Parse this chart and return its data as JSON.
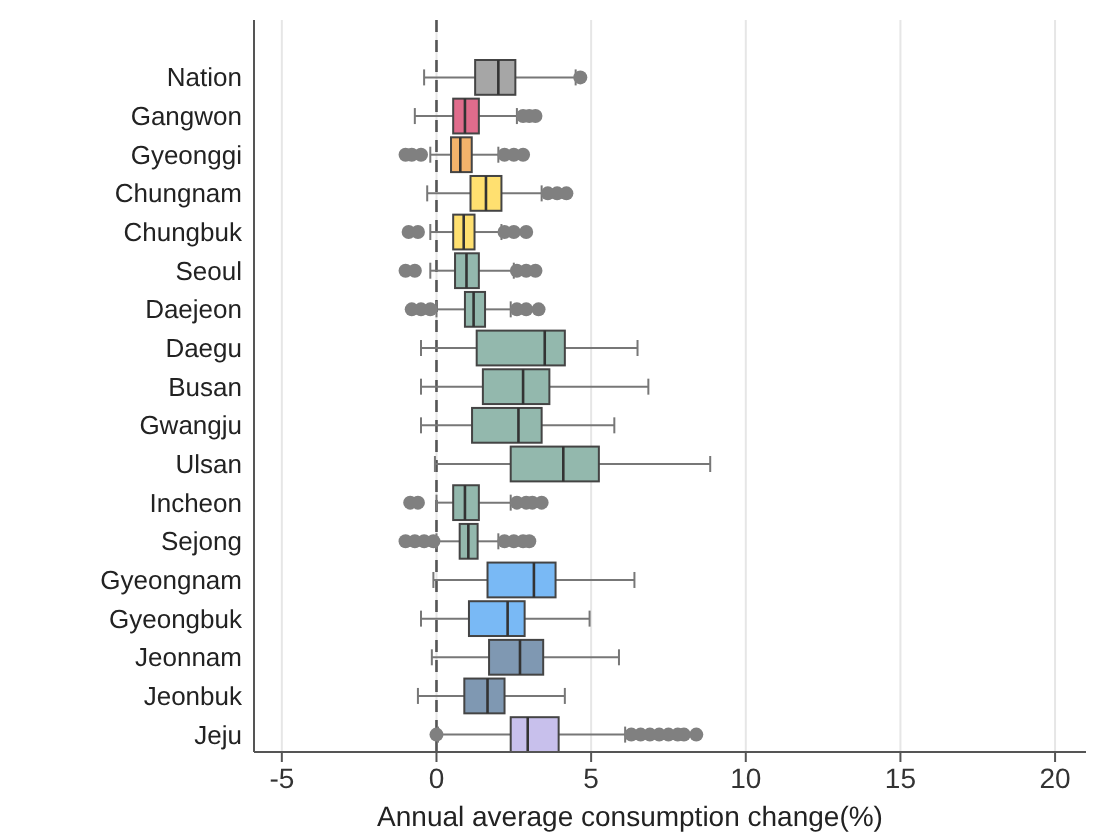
{
  "chart_data": {
    "type": "box",
    "orientation": "horizontal",
    "xlabel": "Annual average consumption change(%)",
    "xlim": [
      -5.9,
      21
    ],
    "xticks": [
      -5,
      0,
      5,
      10,
      15,
      20
    ],
    "grid": "x",
    "categories": [
      "Nation",
      "Gangwon",
      "Gyeonggi",
      "Chungnam",
      "Chungbuk",
      "Seoul",
      "Daejeon",
      "Daegu",
      "Busan",
      "Gwangju",
      "Ulsan",
      "Incheon",
      "Sejong",
      "Gyeongnam",
      "Gyeongbuk",
      "Jeonnam",
      "Jeonbuk",
      "Jeju"
    ],
    "colors": [
      "#a6a6a6",
      "#e06c8c",
      "#f4b36b",
      "#ffe070",
      "#ffe070",
      "#93b8ad",
      "#93b8ad",
      "#93b8ad",
      "#93b8ad",
      "#93b8ad",
      "#93b8ad",
      "#93b8ad",
      "#93b8ad",
      "#79b9f5",
      "#79b9f5",
      "#7f98b2",
      "#7f98b2",
      "#c8c0ec"
    ],
    "ref_lines": [
      {
        "axis": "x",
        "value": 0,
        "line_style": "dashed",
        "color": "#555555"
      }
    ],
    "boxes": [
      {
        "low": -0.4,
        "q1": 1.25,
        "median": 2.0,
        "q3": 2.55,
        "high": 4.5,
        "outliers": [
          4.65
        ]
      },
      {
        "low": -0.7,
        "q1": 0.54,
        "median": 0.92,
        "q3": 1.37,
        "high": 2.6,
        "outliers": [
          2.8,
          3.0,
          3.2
        ]
      },
      {
        "low": -0.2,
        "q1": 0.47,
        "median": 0.77,
        "q3": 1.14,
        "high": 2.0,
        "outliers": [
          -1.0,
          -0.8,
          -0.5,
          2.2,
          2.5,
          2.8
        ]
      },
      {
        "low": -0.3,
        "q1": 1.1,
        "median": 1.6,
        "q3": 2.1,
        "high": 3.4,
        "outliers": [
          3.6,
          3.9,
          4.2
        ]
      },
      {
        "low": -0.2,
        "q1": 0.54,
        "median": 0.88,
        "q3": 1.23,
        "high": 2.1,
        "outliers": [
          -0.9,
          -0.6,
          2.2,
          2.5,
          2.9
        ]
      },
      {
        "low": -0.2,
        "q1": 0.6,
        "median": 0.97,
        "q3": 1.37,
        "high": 2.5,
        "outliers": [
          -1.0,
          -0.7,
          2.6,
          2.9,
          3.2
        ]
      },
      {
        "low": 0.0,
        "q1": 0.92,
        "median": 1.2,
        "q3": 1.57,
        "high": 2.4,
        "outliers": [
          -0.8,
          -0.5,
          -0.2,
          2.6,
          2.9,
          3.3
        ]
      },
      {
        "low": -0.5,
        "q1": 1.3,
        "median": 3.5,
        "q3": 4.15,
        "high": 6.5
      },
      {
        "low": -0.5,
        "q1": 1.5,
        "median": 2.8,
        "q3": 3.65,
        "high": 6.85
      },
      {
        "low": -0.5,
        "q1": 1.15,
        "median": 2.65,
        "q3": 3.4,
        "high": 5.75
      },
      {
        "low": -0.05,
        "q1": 2.4,
        "median": 4.1,
        "q3": 5.25,
        "high": 8.85
      },
      {
        "low": 0.0,
        "q1": 0.54,
        "median": 0.92,
        "q3": 1.37,
        "high": 2.4,
        "outliers": [
          -0.85,
          -0.6,
          2.6,
          2.9,
          3.1,
          3.4
        ]
      },
      {
        "low": 0.0,
        "q1": 0.75,
        "median": 1.03,
        "q3": 1.33,
        "high": 2.0,
        "outliers": [
          -1.0,
          -0.7,
          -0.4,
          -0.1,
          2.2,
          2.5,
          2.8,
          3.0
        ]
      },
      {
        "low": -0.1,
        "q1": 1.65,
        "median": 3.15,
        "q3": 3.85,
        "high": 6.4
      },
      {
        "low": -0.5,
        "q1": 1.05,
        "median": 2.3,
        "q3": 2.85,
        "high": 4.95
      },
      {
        "low": -0.15,
        "q1": 1.7,
        "median": 2.7,
        "q3": 3.45,
        "high": 5.9
      },
      {
        "low": -0.6,
        "q1": 0.9,
        "median": 1.65,
        "q3": 2.2,
        "high": 4.15
      },
      {
        "low": 0.05,
        "q1": 2.4,
        "median": 2.95,
        "q3": 3.95,
        "high": 6.1,
        "outliers": [
          0.0,
          6.3,
          6.6,
          6.9,
          7.2,
          7.5,
          7.8,
          8.0,
          8.4
        ]
      }
    ]
  }
}
